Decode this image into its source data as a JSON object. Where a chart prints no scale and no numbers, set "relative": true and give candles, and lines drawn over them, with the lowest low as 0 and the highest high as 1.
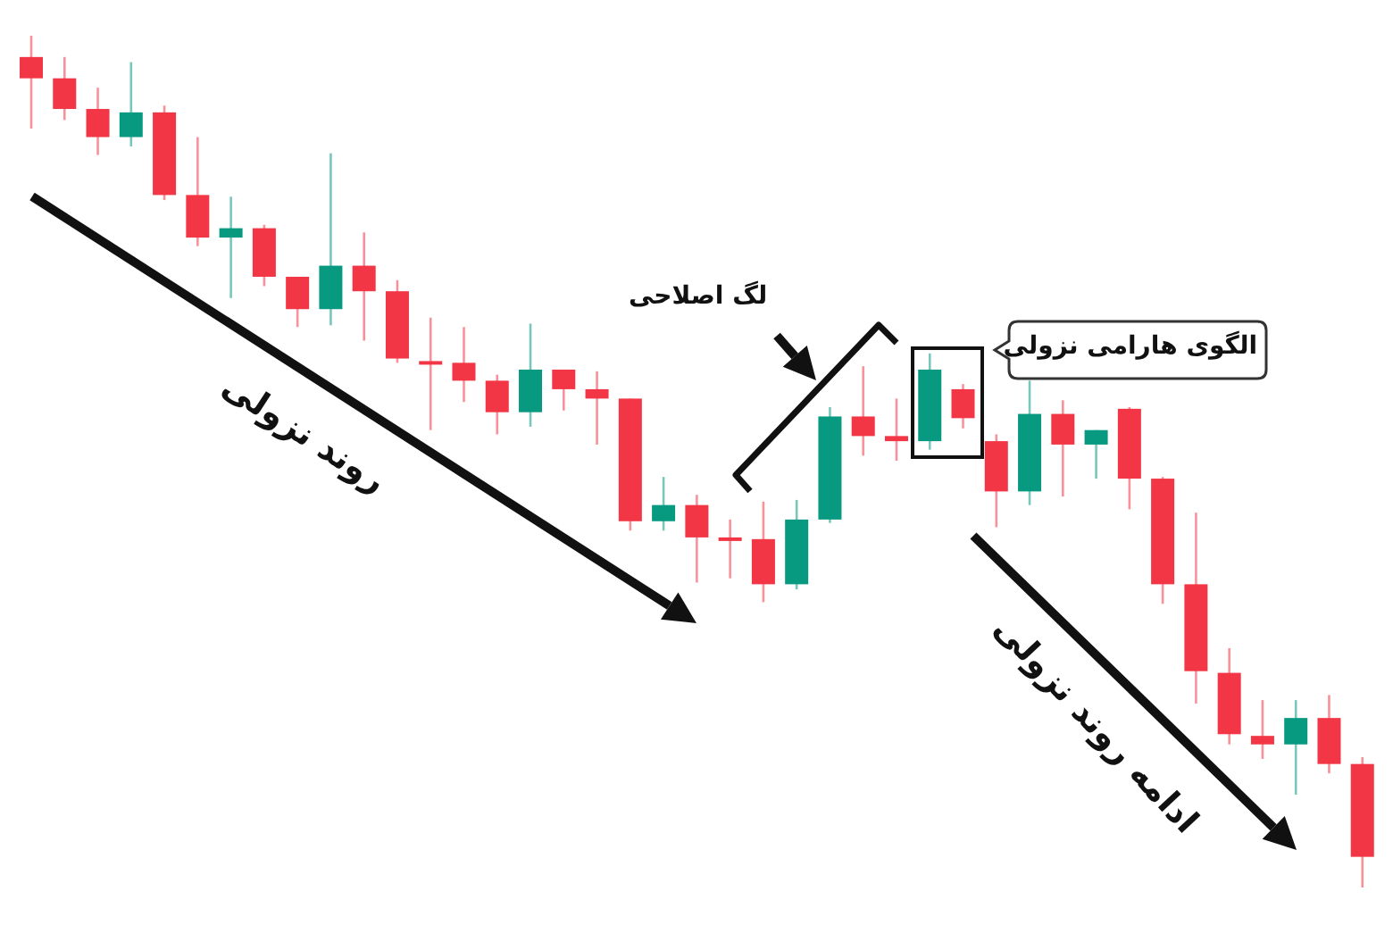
{
  "chart_data": {
    "type": "candlestick",
    "relative": true,
    "categories": [
      null,
      null,
      null,
      null,
      null,
      null,
      null,
      null,
      null,
      null,
      null,
      null,
      null,
      null,
      null,
      null,
      null,
      null,
      null,
      null,
      null,
      null,
      null,
      null,
      null,
      null,
      null,
      null,
      null,
      null,
      null,
      null,
      null,
      null,
      null,
      null,
      null,
      null,
      null,
      null,
      null
    ],
    "ohlc": [
      [
        0.975,
        1,
        0.891,
        0.95
      ],
      [
        0.95,
        0.975,
        0.901,
        0.914
      ],
      [
        0.914,
        0.939,
        0.86,
        0.881
      ],
      [
        0.881,
        0.969,
        0.87,
        0.91
      ],
      [
        0.91,
        0.918,
        0.807,
        0.813
      ],
      [
        0.813,
        0.881,
        0.753,
        0.763
      ],
      [
        0.763,
        0.811,
        0.692,
        0.774
      ],
      [
        0.774,
        0.778,
        0.706,
        0.717
      ],
      [
        0.717,
        0.717,
        0.658,
        0.679
      ],
      [
        0.679,
        0.862,
        0.66,
        0.73
      ],
      [
        0.73,
        0.769,
        0.642,
        0.7
      ],
      [
        0.7,
        0.713,
        0.616,
        0.621
      ],
      [
        0.618,
        0.669,
        0.537,
        0.614
      ],
      [
        0.616,
        0.658,
        0.57,
        0.595
      ],
      [
        0.595,
        0.602,
        0.532,
        0.558
      ],
      [
        0.558,
        0.662,
        0.541,
        0.608
      ],
      [
        0.608,
        0.608,
        0.56,
        0.585
      ],
      [
        0.585,
        0.606,
        0.52,
        0.574
      ],
      [
        0.574,
        0.574,
        0.419,
        0.43
      ],
      [
        0.43,
        0.482,
        0.419,
        0.449
      ],
      [
        0.449,
        0.461,
        0.358,
        0.411
      ],
      [
        0.411,
        0.432,
        0.363,
        0.407
      ],
      [
        0.409,
        0.453,
        0.335,
        0.356
      ],
      [
        0.356,
        0.455,
        0.35,
        0.432
      ],
      [
        0.432,
        0.564,
        0.428,
        0.553
      ],
      [
        0.553,
        0.612,
        0.507,
        0.53
      ],
      [
        0.53,
        0.574,
        0.501,
        0.524
      ],
      [
        0.524,
        0.627,
        0.514,
        0.608
      ],
      [
        0.585,
        0.591,
        0.539,
        0.551
      ],
      [
        0.524,
        0.532,
        0.423,
        0.465
      ],
      [
        0.465,
        0.595,
        0.449,
        0.556
      ],
      [
        0.556,
        0.572,
        0.459,
        0.52
      ],
      [
        0.52,
        0.537,
        0.48,
        0.537
      ],
      [
        0.562,
        0.564,
        0.444,
        0.48
      ],
      [
        0.48,
        0.482,
        0.333,
        0.356
      ],
      [
        0.356,
        0.44,
        0.216,
        0.254
      ],
      [
        0.252,
        0.281,
        0.168,
        0.18
      ],
      [
        0.178,
        0.22,
        0.151,
        0.168
      ],
      [
        0.168,
        0.22,
        0.109,
        0.199
      ],
      [
        0.199,
        0.226,
        0.134,
        0.145
      ],
      [
        0.145,
        0.153,
        0,
        0.036
      ]
    ],
    "colors": [
      "#f23645",
      "#f23645",
      "#f23645",
      "#089981",
      "#f23645",
      "#f23645",
      "#089981",
      "#f23645",
      "#f23645",
      "#089981",
      "#f23645",
      "#f23645",
      "#f23645",
      "#f23645",
      "#f23645",
      "#089981",
      "#f23645",
      "#f23645",
      "#f23645",
      "#089981",
      "#f23645",
      "#f23645",
      "#f23645",
      "#089981",
      "#089981",
      "#f23645",
      "#f23645",
      "#089981",
      "#f23645",
      "#f23645",
      "#089981",
      "#f23645",
      "#089981",
      "#f23645",
      "#f23645",
      "#f23645",
      "#f23645",
      "#f23645",
      "#089981",
      "#f23645",
      "#f23645"
    ],
    "annotations": [
      "روند نزولی",
      "لگ اصلاحی",
      "الگوی هارامی نزولی",
      "ادامه روند نزولی"
    ]
  }
}
